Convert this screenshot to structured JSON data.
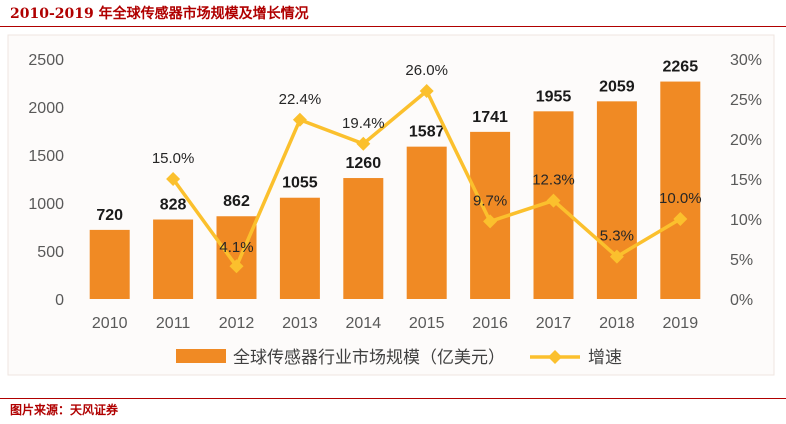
{
  "header": {
    "title": "2010-2019 年全球传感器市场规模及增长情况"
  },
  "footer": {
    "source": "图片来源：天风证券"
  },
  "colors": {
    "bar": "#f08a24",
    "line": "#fbc02d",
    "title": "#b00000"
  },
  "chart_data": {
    "type": "bar",
    "title": "2010-2019 年全球传感器市场规模及增长情况",
    "categories": [
      "2010",
      "2011",
      "2012",
      "2013",
      "2014",
      "2015",
      "2016",
      "2017",
      "2018",
      "2019"
    ],
    "y_left": {
      "range": [
        0,
        2500
      ],
      "ticks": [
        "0",
        "500",
        "1000",
        "1500",
        "2000",
        "2500"
      ]
    },
    "y_right": {
      "range": [
        0,
        30
      ],
      "ticks": [
        "0%",
        "5%",
        "10%",
        "15%",
        "20%",
        "25%",
        "30%"
      ]
    },
    "series": [
      {
        "name": "全球传感器行业市场规模（亿美元）",
        "type": "bar",
        "axis": "left",
        "values": [
          720,
          828,
          862,
          1055,
          1260,
          1587,
          1741,
          1955,
          2059,
          2265
        ],
        "labels": [
          "720",
          "828",
          "862",
          "1055",
          "1260",
          "1587",
          "1741",
          "1955",
          "2059",
          "2265"
        ]
      },
      {
        "name": "增速",
        "type": "line",
        "axis": "right",
        "x": [
          "2011",
          "2012",
          "2013",
          "2014",
          "2015",
          "2016",
          "2017",
          "2018",
          "2019"
        ],
        "values": [
          15.0,
          4.1,
          22.4,
          19.4,
          26.0,
          9.7,
          12.3,
          5.3,
          10.0
        ],
        "labels": [
          "15.0%",
          "4.1%",
          "22.4%",
          "19.4%",
          "26.0%",
          "9.7%",
          "12.3%",
          "5.3%",
          "10.0%"
        ]
      }
    ],
    "grid": false,
    "legend": "bottom"
  }
}
